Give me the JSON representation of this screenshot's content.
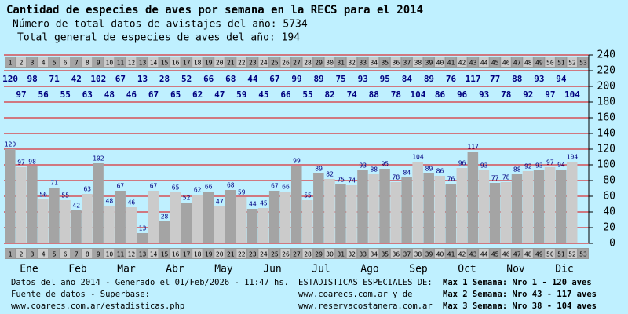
{
  "chart_data": {
    "type": "bar",
    "title": "Cantidad de especies de aves por semana en la RECS para el 2014",
    "subtitle": [
      "Número de total datos de avistajes del año: 5734",
      "Total general de especies de aves del año: 194"
    ],
    "categories": [
      "1",
      "2",
      "3",
      "4",
      "5",
      "6",
      "7",
      "8",
      "9",
      "10",
      "11",
      "12",
      "13",
      "14",
      "15",
      "16",
      "17",
      "18",
      "19",
      "20",
      "21",
      "22",
      "23",
      "24",
      "25",
      "26",
      "27",
      "28",
      "29",
      "30",
      "31",
      "32",
      "33",
      "34",
      "35",
      "36",
      "37",
      "38",
      "39",
      "40",
      "41",
      "42",
      "43",
      "44",
      "45",
      "46",
      "47",
      "48",
      "49",
      "50",
      "51",
      "52",
      "53"
    ],
    "values": [
      120,
      97,
      98,
      56,
      71,
      55,
      42,
      63,
      102,
      48,
      67,
      46,
      13,
      67,
      28,
      65,
      52,
      62,
      66,
      47,
      68,
      59,
      44,
      45,
      67,
      66,
      99,
      55,
      89,
      82,
      75,
      74,
      93,
      88,
      95,
      78,
      84,
      104,
      89,
      86,
      76,
      96,
      117,
      93,
      77,
      78,
      88,
      92,
      93,
      97,
      94,
      104,
      null
    ],
    "month_labels": [
      "Ene",
      "Feb",
      "Mar",
      "Abr",
      "May",
      "Jun",
      "Jul",
      "Ago",
      "Sep",
      "Oct",
      "Nov",
      "Dic"
    ],
    "colors": [
      "#a4a4a4",
      "#cbcbcb"
    ],
    "ylim": [
      0,
      240
    ],
    "yticks": [
      0,
      20,
      40,
      60,
      80,
      100,
      120,
      140,
      160,
      180,
      200,
      220,
      240
    ],
    "grid": true,
    "grid_color": "#e00000",
    "y_axis_side": "right",
    "footer": {
      "left": [
        "Datos del año 2014 - Generado el 01/Feb/2026 - 11:47 hs.",
        "Fuente de datos - Superbase:",
        "www.coarecs.com.ar/estadisticas.php"
      ],
      "middle": [
        "ESTADISTICAS ESPECIALES DE:",
        "www.coarecs.com.ar y de",
        "www.reservacostanera.com.ar"
      ],
      "right": [
        "Max 1 Semana: Nro 1 - 120 aves",
        "Max 2 Semana: Nro 43 - 117 aves",
        "Max 3 Semana: Nro 38 - 104 aves"
      ]
    }
  }
}
